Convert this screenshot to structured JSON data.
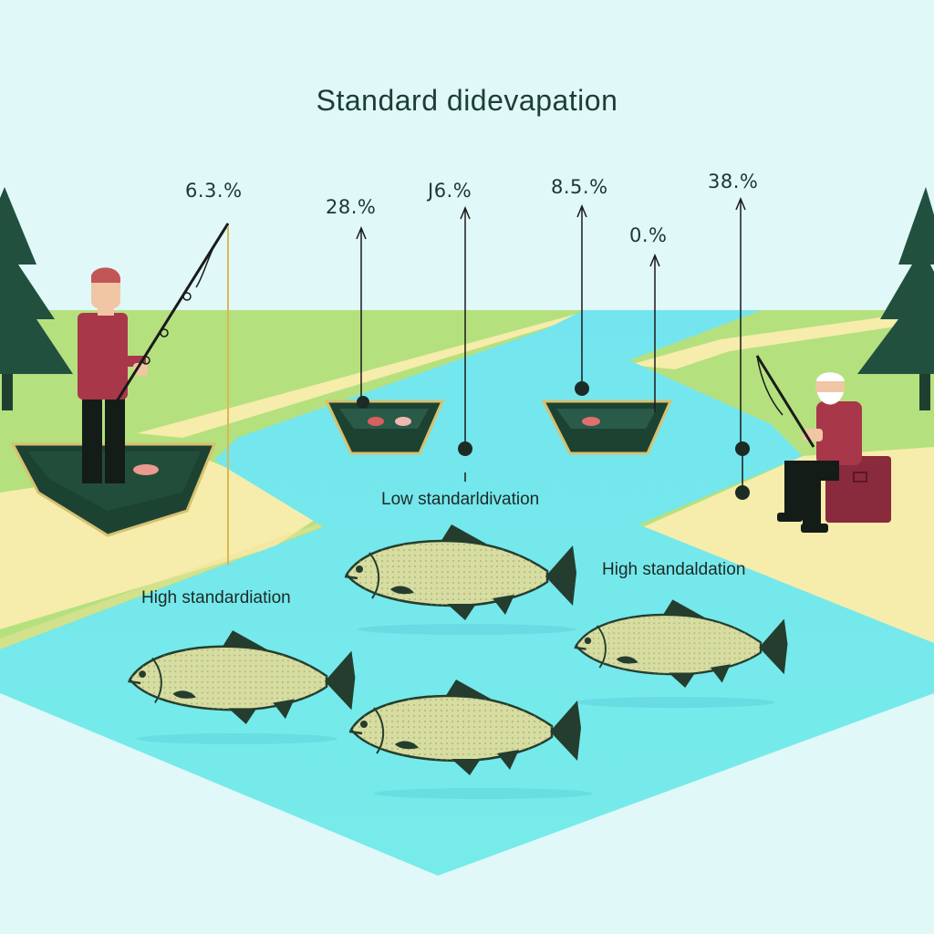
{
  "title": "Standard didevapation",
  "percentages": [
    "6.3.%",
    "28.%",
    "J6.%",
    "8.5.%",
    "0.%",
    "38.%"
  ],
  "captions": {
    "low": "Low standarldivation",
    "high_left": "High standardiation",
    "high_right": "High standaldation"
  },
  "colors": {
    "sky": "#e0f8f8",
    "grass": "#b5e07e",
    "river": "#72e4ec",
    "sand": "#f5ebaa",
    "tree": "#21503f",
    "boat": "#1c4232",
    "shirt": "#a8374a",
    "fish_body": "#d7dca0",
    "fish_fin": "#243d2e"
  }
}
